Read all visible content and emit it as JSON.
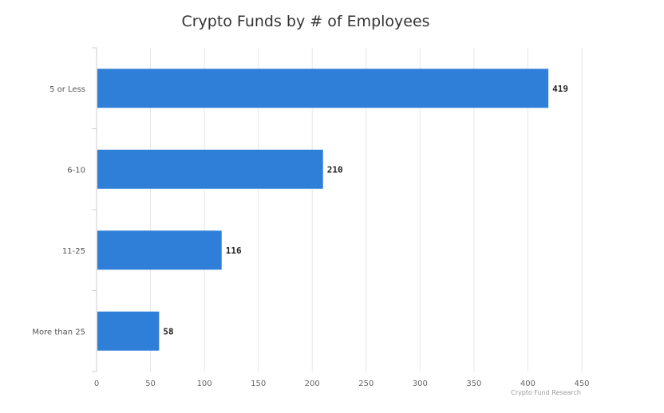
{
  "chart_data": {
    "type": "bar",
    "orientation": "horizontal",
    "title": "Crypto Funds by # of Employees",
    "categories": [
      "5 or Less",
      "6-10",
      "11-25",
      "More than 25"
    ],
    "values": [
      419,
      210,
      116,
      58
    ],
    "data_labels": [
      "419",
      "210",
      "116",
      "58"
    ],
    "xlim": [
      0,
      450
    ],
    "xticks": [
      0,
      50,
      100,
      150,
      200,
      250,
      300,
      350,
      400,
      450
    ],
    "grid": "vertical",
    "legend": "none",
    "bar_color": "#2f7ed8",
    "source": "Crypto Fund Research"
  }
}
